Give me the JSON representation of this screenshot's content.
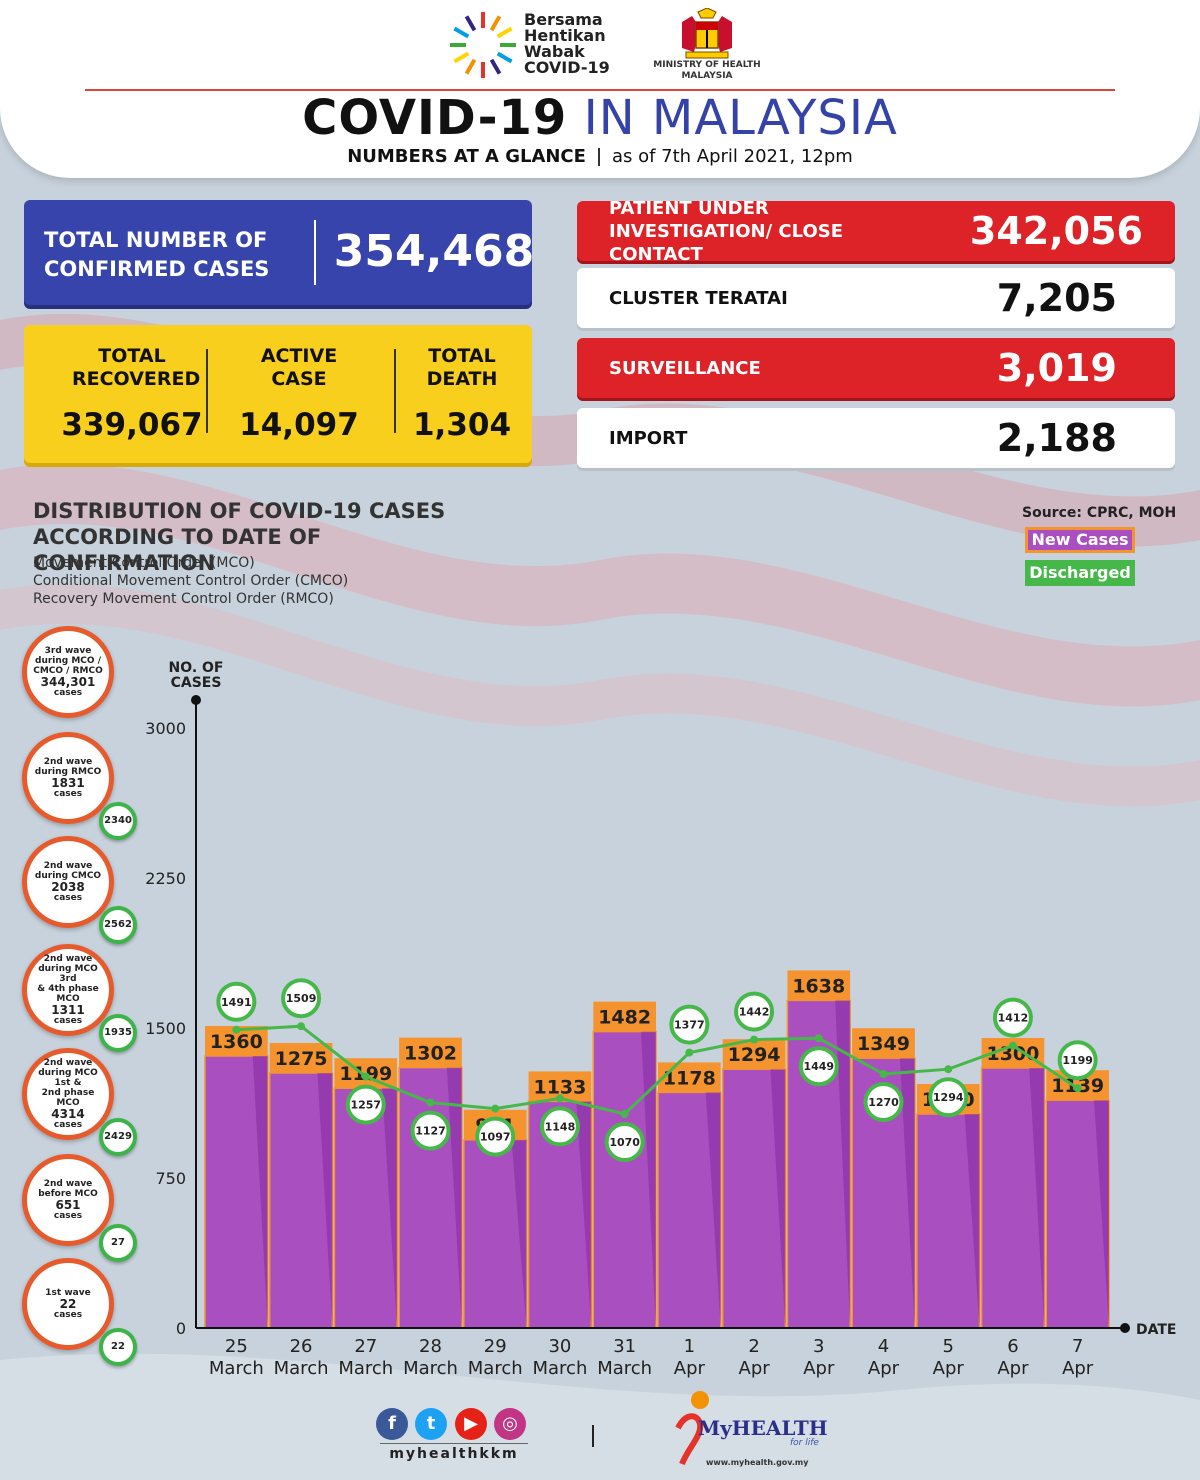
{
  "header": {
    "campaign_lines": [
      "Bersama",
      "Hentikan",
      "Wabak",
      "COVID-19"
    ],
    "ministry": [
      "MINISTRY OF HEALTH",
      "MALAYSIA"
    ],
    "title_bold": "COVID-19",
    "title_light": "IN MALAYSIA",
    "subtitle_bold": "NUMBERS AT A GLANCE",
    "subtitle_date": "as of 7th April 2021, 12pm"
  },
  "stats": {
    "confirmed": {
      "label": "TOTAL NUMBER OF CONFIRMED CASES",
      "value": "354,468"
    },
    "recovered": {
      "label": "TOTAL RECOVERED",
      "value": "339,067"
    },
    "active": {
      "label": "ACTIVE CASE",
      "value": "14,097"
    },
    "death": {
      "label": "TOTAL DEATH",
      "value": "1,304"
    }
  },
  "right_stats": [
    {
      "label": "PATIENT UNDER INVESTIGATION/ CLOSE CONTACT",
      "value": "342,056",
      "style": "red"
    },
    {
      "label": "CLUSTER TERATAI",
      "value": "7,205",
      "style": "white"
    },
    {
      "label": "SURVEILLANCE",
      "value": "3,019",
      "style": "red"
    },
    {
      "label": "IMPORT",
      "value": "2,188",
      "style": "white"
    }
  ],
  "distribution": {
    "title": "DISTRIBUTION OF COVID-19 CASES ACCORDING TO DATE OF CONFIRMATION",
    "notes": [
      "Movement Control Order (MCO)",
      "Conditional Movement Control Order (CMCO)",
      "Recovery Movement Control Order (RMCO)"
    ],
    "source": "Source: CPRC, MOH",
    "legend_new": "New Cases",
    "legend_discharged": "Discharged"
  },
  "waves": [
    {
      "lines": [
        "3rd wave",
        "during MCO /",
        "CMCO / RMCO"
      ],
      "count": "344,301",
      "unit": "cases",
      "discharged": ""
    },
    {
      "lines": [
        "2nd wave",
        "during RMCO"
      ],
      "count": "1831",
      "unit": "cases",
      "discharged": "2340"
    },
    {
      "lines": [
        "2nd wave",
        "during CMCO"
      ],
      "count": "2038",
      "unit": "cases",
      "discharged": "2562"
    },
    {
      "lines": [
        "2nd wave",
        "during MCO 3rd",
        "& 4th phase MCO"
      ],
      "count": "1311",
      "unit": "cases",
      "discharged": "1935"
    },
    {
      "lines": [
        "2nd wave",
        "during MCO 1st &",
        "2nd phase MCO"
      ],
      "count": "4314",
      "unit": "cases",
      "discharged": "2429"
    },
    {
      "lines": [
        "2nd wave",
        "before MCO"
      ],
      "count": "651",
      "unit": "cases",
      "discharged": "27"
    },
    {
      "lines": [
        "1st wave"
      ],
      "count": "22",
      "unit": "cases",
      "discharged": "22"
    }
  ],
  "chart_data": {
    "type": "bar",
    "ylabel": "NO. OF CASES",
    "xlabel": "DATE",
    "ylim": [
      0,
      3000
    ],
    "yticks": [
      0,
      750,
      1500,
      2250,
      3000
    ],
    "categories": [
      [
        "25",
        "March"
      ],
      [
        "26",
        "March"
      ],
      [
        "27",
        "March"
      ],
      [
        "28",
        "March"
      ],
      [
        "29",
        "March"
      ],
      [
        "30",
        "March"
      ],
      [
        "31",
        "March"
      ],
      [
        "1",
        "Apr"
      ],
      [
        "2",
        "Apr"
      ],
      [
        "3",
        "Apr"
      ],
      [
        "4",
        "Apr"
      ],
      [
        "5",
        "Apr"
      ],
      [
        "6",
        "Apr"
      ],
      [
        "7",
        "Apr"
      ]
    ],
    "series": [
      {
        "name": "New Cases",
        "type": "bar",
        "color": "#a94fc0",
        "values": [
          1360,
          1275,
          1199,
          1302,
          941,
          1133,
          1482,
          1178,
          1294,
          1638,
          1349,
          1070,
          1300,
          1139
        ]
      },
      {
        "name": "Discharged",
        "type": "line",
        "color": "#46b84a",
        "values": [
          1491,
          1509,
          1257,
          1127,
          1097,
          1148,
          1070,
          1377,
          1442,
          1449,
          1270,
          1294,
          1412,
          1199
        ]
      }
    ]
  },
  "footer": {
    "social_icons": [
      "facebook-icon",
      "twitter-icon",
      "youtube-icon",
      "instagram-icon"
    ],
    "handle": "myhealthkkm",
    "brand": "MyHEALTH",
    "tagline": "for life",
    "url": "www.myhealth.gov.my"
  },
  "colors": {
    "blue": "#3644ab",
    "yellow": "#f8cf1c",
    "red": "#dd2228",
    "bar": "#a94fc0",
    "bar_label": "#f5942f",
    "line": "#46b84a"
  }
}
